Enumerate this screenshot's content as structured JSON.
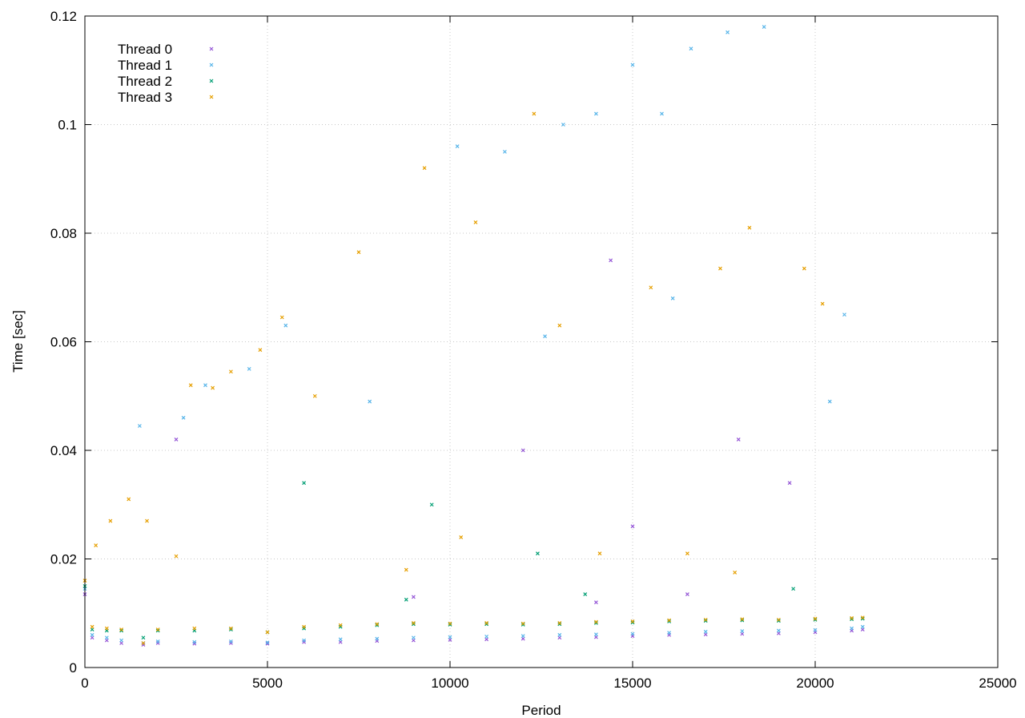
{
  "chart_data": {
    "type": "scatter",
    "title": "",
    "xlabel": "Period",
    "ylabel": "Time [sec]",
    "xlim": [
      0,
      25000
    ],
    "ylim": [
      0,
      0.12
    ],
    "x_ticks": [
      0,
      5000,
      10000,
      15000,
      20000,
      25000
    ],
    "x_tick_labels": [
      "0",
      "5000",
      "10000",
      "15000",
      "20000",
      "25000"
    ],
    "y_ticks": [
      0,
      0.02,
      0.04,
      0.06,
      0.08,
      0.1,
      0.12
    ],
    "y_tick_labels": [
      "0",
      "0.02",
      "0.04",
      "0.06",
      "0.08",
      "0.1",
      "0.12"
    ],
    "grid": true,
    "legend_position": "top-left",
    "series": [
      {
        "name": "Thread 0",
        "color": "#9455d6",
        "points": [
          [
            0,
            0.0135
          ],
          [
            200,
            0.0055
          ],
          [
            600,
            0.005
          ],
          [
            1000,
            0.0045
          ],
          [
            1600,
            0.0042
          ],
          [
            2000,
            0.0045
          ],
          [
            3000,
            0.0044
          ],
          [
            4000,
            0.0045
          ],
          [
            5000,
            0.0044
          ],
          [
            6000,
            0.0047
          ],
          [
            7000,
            0.0047
          ],
          [
            8000,
            0.0049
          ],
          [
            9000,
            0.005
          ],
          [
            10000,
            0.0051
          ],
          [
            11000,
            0.0052
          ],
          [
            12000,
            0.0053
          ],
          [
            13000,
            0.0055
          ],
          [
            14000,
            0.0056
          ],
          [
            15000,
            0.0058
          ],
          [
            16000,
            0.006
          ],
          [
            17000,
            0.0061
          ],
          [
            18000,
            0.0062
          ],
          [
            19000,
            0.0063
          ],
          [
            20000,
            0.0065
          ],
          [
            21000,
            0.0068
          ],
          [
            21300,
            0.007
          ],
          [
            9000,
            0.013
          ],
          [
            14000,
            0.012
          ],
          [
            16500,
            0.0135
          ],
          [
            2500,
            0.042
          ],
          [
            14400,
            0.075
          ],
          [
            17900,
            0.042
          ],
          [
            19300,
            0.034
          ],
          [
            12000,
            0.04
          ],
          [
            15000,
            0.026
          ]
        ]
      },
      {
        "name": "Thread 1",
        "color": "#56b4e9",
        "points": [
          [
            0,
            0.0145
          ],
          [
            200,
            0.006
          ],
          [
            600,
            0.0055
          ],
          [
            1000,
            0.005
          ],
          [
            1600,
            0.0045
          ],
          [
            2000,
            0.0048
          ],
          [
            3000,
            0.0047
          ],
          [
            4000,
            0.0048
          ],
          [
            5000,
            0.0046
          ],
          [
            6000,
            0.005
          ],
          [
            7000,
            0.0052
          ],
          [
            8000,
            0.0053
          ],
          [
            9000,
            0.0055
          ],
          [
            10000,
            0.0056
          ],
          [
            11000,
            0.0057
          ],
          [
            12000,
            0.0058
          ],
          [
            13000,
            0.006
          ],
          [
            14000,
            0.0061
          ],
          [
            15000,
            0.0062
          ],
          [
            16000,
            0.0064
          ],
          [
            17000,
            0.0066
          ],
          [
            18000,
            0.0067
          ],
          [
            19000,
            0.0068
          ],
          [
            20000,
            0.0069
          ],
          [
            21000,
            0.0072
          ],
          [
            21300,
            0.0075
          ],
          [
            1500,
            0.0445
          ],
          [
            2700,
            0.046
          ],
          [
            3300,
            0.052
          ],
          [
            4500,
            0.055
          ],
          [
            5500,
            0.063
          ],
          [
            7800,
            0.049
          ],
          [
            11500,
            0.095
          ],
          [
            13100,
            0.1
          ],
          [
            14000,
            0.102
          ],
          [
            15800,
            0.102
          ],
          [
            16600,
            0.114
          ],
          [
            17600,
            0.117
          ],
          [
            18600,
            0.118
          ],
          [
            20800,
            0.065
          ],
          [
            15000,
            0.111
          ],
          [
            20400,
            0.049
          ],
          [
            10200,
            0.096
          ],
          [
            12600,
            0.061
          ],
          [
            16100,
            0.068
          ]
        ]
      },
      {
        "name": "Thread 2",
        "color": "#009e73",
        "points": [
          [
            0,
            0.015
          ],
          [
            200,
            0.007
          ],
          [
            600,
            0.0068
          ],
          [
            1000,
            0.0068
          ],
          [
            1600,
            0.0055
          ],
          [
            2000,
            0.0068
          ],
          [
            3000,
            0.0068
          ],
          [
            4000,
            0.007
          ],
          [
            5000,
            0.0065
          ],
          [
            6000,
            0.0072
          ],
          [
            7000,
            0.0075
          ],
          [
            8000,
            0.0078
          ],
          [
            9000,
            0.008
          ],
          [
            10000,
            0.0079
          ],
          [
            11000,
            0.008
          ],
          [
            12000,
            0.0079
          ],
          [
            13000,
            0.008
          ],
          [
            14000,
            0.0082
          ],
          [
            15000,
            0.0083
          ],
          [
            16000,
            0.0085
          ],
          [
            17000,
            0.0086
          ],
          [
            18000,
            0.0087
          ],
          [
            19000,
            0.0086
          ],
          [
            20000,
            0.0088
          ],
          [
            21000,
            0.0089
          ],
          [
            21300,
            0.009
          ],
          [
            8800,
            0.0125
          ],
          [
            13700,
            0.0135
          ],
          [
            19400,
            0.0145
          ],
          [
            6000,
            0.034
          ],
          [
            9500,
            0.03
          ],
          [
            12400,
            0.021
          ]
        ]
      },
      {
        "name": "Thread 3",
        "color": "#e69f00",
        "points": [
          [
            0,
            0.016
          ],
          [
            200,
            0.0075
          ],
          [
            600,
            0.0072
          ],
          [
            1000,
            0.007
          ],
          [
            1600,
            0.0045
          ],
          [
            2000,
            0.007
          ],
          [
            3000,
            0.0072
          ],
          [
            4000,
            0.0072
          ],
          [
            5000,
            0.0065
          ],
          [
            6000,
            0.0075
          ],
          [
            7000,
            0.0078
          ],
          [
            8000,
            0.008
          ],
          [
            9000,
            0.0082
          ],
          [
            10000,
            0.0081
          ],
          [
            11000,
            0.0082
          ],
          [
            12000,
            0.0081
          ],
          [
            13000,
            0.0082
          ],
          [
            14000,
            0.0084
          ],
          [
            15000,
            0.0085
          ],
          [
            16000,
            0.0087
          ],
          [
            17000,
            0.0088
          ],
          [
            18000,
            0.0089
          ],
          [
            19000,
            0.0088
          ],
          [
            20000,
            0.009
          ],
          [
            21000,
            0.0091
          ],
          [
            21300,
            0.0092
          ],
          [
            300,
            0.0225
          ],
          [
            700,
            0.027
          ],
          [
            1200,
            0.031
          ],
          [
            1700,
            0.027
          ],
          [
            2900,
            0.052
          ],
          [
            3500,
            0.0515
          ],
          [
            4000,
            0.0545
          ],
          [
            4800,
            0.0585
          ],
          [
            5400,
            0.0645
          ],
          [
            6300,
            0.05
          ],
          [
            7500,
            0.0765
          ],
          [
            9300,
            0.092
          ],
          [
            10700,
            0.082
          ],
          [
            12300,
            0.102
          ],
          [
            13000,
            0.063
          ],
          [
            15500,
            0.07
          ],
          [
            17400,
            0.0735
          ],
          [
            18200,
            0.081
          ],
          [
            19700,
            0.0735
          ],
          [
            20200,
            0.067
          ],
          [
            16500,
            0.021
          ],
          [
            14100,
            0.021
          ],
          [
            10300,
            0.024
          ],
          [
            8800,
            0.018
          ],
          [
            2500,
            0.0205
          ],
          [
            17800,
            0.0175
          ]
        ]
      }
    ]
  }
}
